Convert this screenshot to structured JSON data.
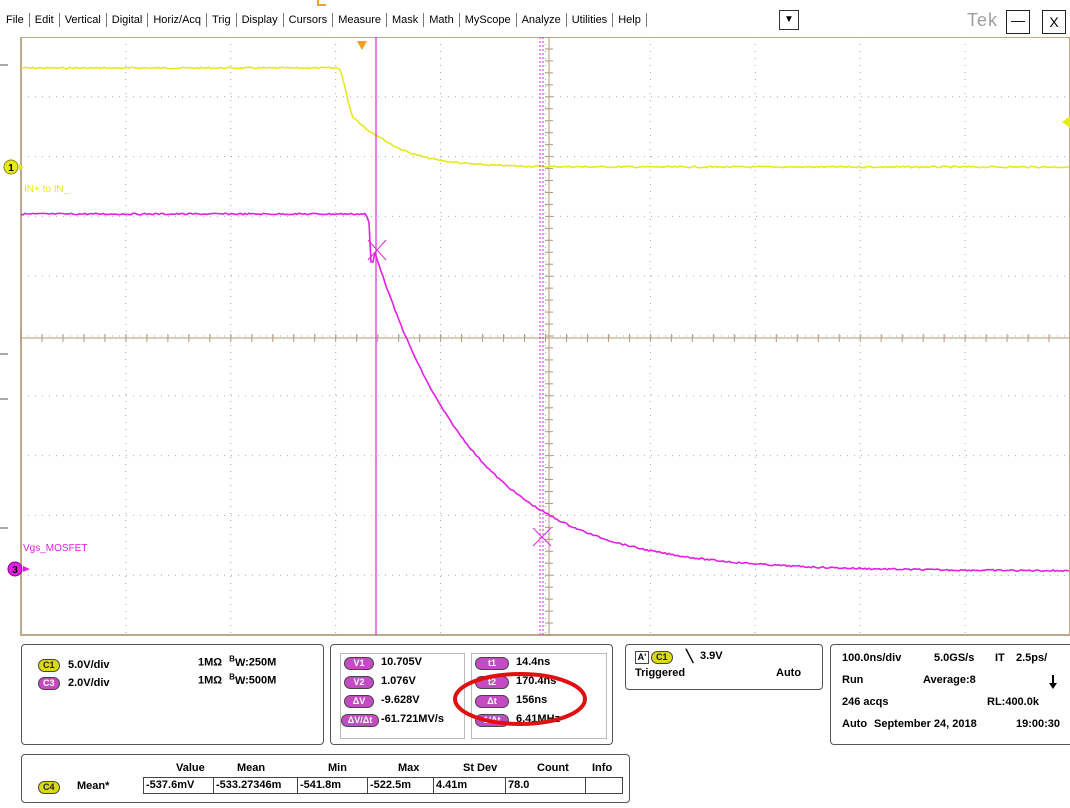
{
  "menu": {
    "items": [
      "File",
      "Edit",
      "Vertical",
      "Digital",
      "Horiz/Acq",
      "Trig",
      "Display",
      "Cursors",
      "Measure",
      "Mask",
      "Math",
      "MyScope",
      "Analyze",
      "Utilities",
      "Help"
    ],
    "dropdown_icon": "▼",
    "brand": "Tek",
    "minimize_label": "—",
    "close_label": "X"
  },
  "traces": {
    "ch1": {
      "marker": "1",
      "label": "IN+ to IN_",
      "color": "#e8e81e"
    },
    "ch3": {
      "marker": "3",
      "label": "Vgs_MOSFET",
      "color": "#e21fe2"
    },
    "trigger_color": "#f0a020",
    "cursor_color": "#d82cd8"
  },
  "channels": [
    {
      "id": "C1",
      "scale": "5.0V/div",
      "coupling": "1MΩ",
      "bw_prefix": "B",
      "bw_sub": "W",
      "bw_value": ":250M"
    },
    {
      "id": "C3",
      "scale": "2.0V/div",
      "coupling": "1MΩ",
      "bw_prefix": "B",
      "bw_sub": "W",
      "bw_value": ":500M"
    }
  ],
  "cursors": {
    "v1_label": "V1",
    "v1": "10.705V",
    "v2_label": "V2",
    "v2": "1.076V",
    "dv_label": "ΔV",
    "dv": "-9.628V",
    "dvdt_label": "ΔV/Δt",
    "dvdt": "-61.721MV/s",
    "t1_label": "t1",
    "t1": "14.4ns",
    "t2_label": "t2",
    "t2": "170.4ns",
    "dt_label": "Δt",
    "dt": "156ns",
    "inv_dt_label": "1/Δt",
    "inv_dt": "6.41MHz"
  },
  "trigger": {
    "tag": "A'",
    "source": "C1",
    "slope_icon": "╲",
    "level": "3.9V",
    "state": "Triggered",
    "mode": "Auto"
  },
  "acquisition": {
    "timebase": "100.0ns/div",
    "sample_rate": "5.0GS/s",
    "it_label": "IT",
    "interval": "2.5ps/",
    "run_state": "Run",
    "average": "Average:8",
    "acqs": "246 acqs",
    "record_length": "RL:400.0k",
    "mode": "Auto",
    "date": "September 24, 2018",
    "time": "19:00:30"
  },
  "measurement": {
    "headers": [
      "Value",
      "Mean",
      "Min",
      "Max",
      "St Dev",
      "Count",
      "Info"
    ],
    "source": "C4",
    "name": "Mean*",
    "values": [
      "-537.6mV",
      "-533.27346m",
      "-541.8m",
      "-522.5m",
      "4.41m",
      "78.0",
      ""
    ]
  }
}
